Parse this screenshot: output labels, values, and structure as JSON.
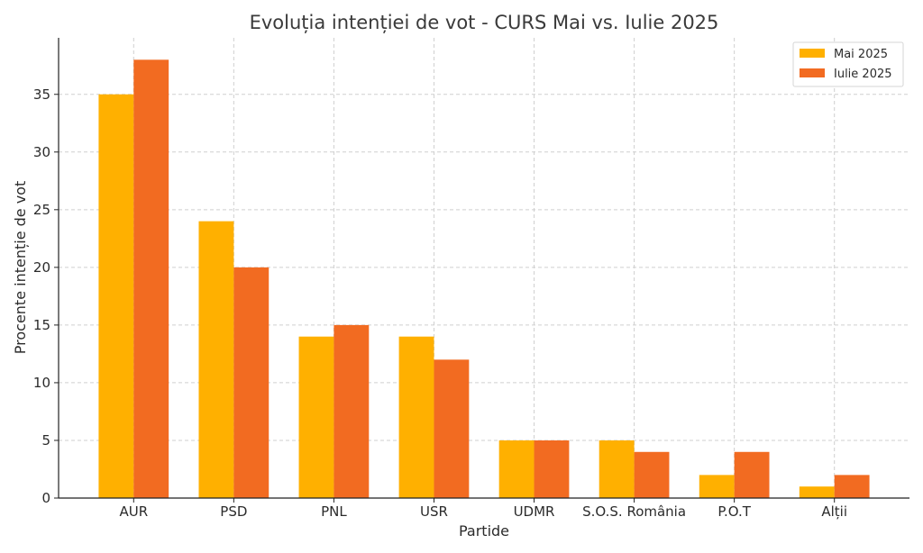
{
  "chart_data": {
    "type": "bar",
    "title": "Evoluția intenției de vot - CURS Mai vs. Iulie 2025",
    "xlabel": "Partide",
    "ylabel": "Procente intenție de vot",
    "categories": [
      "AUR",
      "PSD",
      "PNL",
      "USR",
      "UDMR",
      "S.O.S. România",
      "P.O.T",
      "Alții"
    ],
    "series": [
      {
        "name": "Mai 2025",
        "color": "#ffb000",
        "values": [
          35,
          24,
          14,
          14,
          5,
          5,
          2,
          1
        ]
      },
      {
        "name": "Iulie 2025",
        "color": "#f26b21",
        "values": [
          38,
          20,
          15,
          12,
          5,
          4,
          4,
          2
        ]
      }
    ],
    "yticks": [
      0,
      5,
      10,
      15,
      20,
      25,
      30,
      35
    ],
    "ylim": [
      0,
      39.9
    ],
    "grid": true,
    "legend_position": "top-right"
  }
}
